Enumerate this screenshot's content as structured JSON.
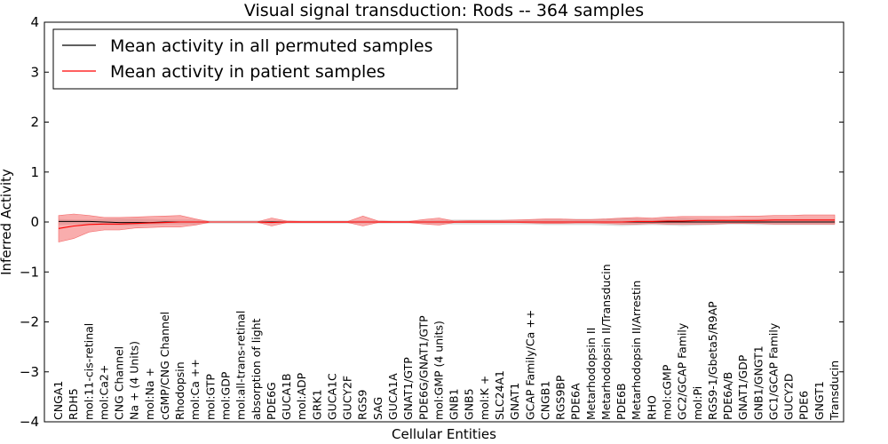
{
  "chart_data": {
    "type": "line",
    "title": "Visual signal transduction: Rods -- 364 samples",
    "xlabel": "Cellular Entities",
    "ylabel": "Inferred Activity",
    "ylim": [
      -4,
      4
    ],
    "yticks": [
      "−4",
      "−3",
      "−2",
      "−1",
      "0",
      "1",
      "2",
      "3",
      "4"
    ],
    "grid": false,
    "legend_position": "top-left",
    "categories": [
      "CNGA1",
      "RDH5",
      "mol:11-cis-retinal",
      "mol:Ca2+",
      "CNG Channel",
      "Na + (4 Units)",
      "mol:Na +",
      "cGMP/CNG Channel",
      "Rhodopsin",
      "mol:Ca ++",
      "mol:GTP",
      "mol:GDP",
      "mol:all-trans-retinal",
      "absorption of light",
      "PDE6G",
      "GUCA1B",
      "mol:ADP",
      "GRK1",
      "GUCA1C",
      "GUCY2F",
      "RGS9",
      "SAG",
      "GUCA1A",
      "GNAT1/GTP",
      "PDE6G/GNAT1/GTP",
      "mol:GMP (4 units)",
      "GNB1",
      "GNB5",
      "mol:K +",
      "SLC24A1",
      "GNAT1",
      "GCAP Family/Ca ++",
      "CNGB1",
      "RGS9BP",
      "PDE6A",
      "Metarhodopsin II",
      "Metarhodopsin II/Transducin",
      "PDE6B",
      "Metarhodopsin II/Arrestin",
      "RHO",
      "mol:cGMP",
      "GC2/GCAP Family",
      "mol:Pi",
      "RGS9-1/Gbeta5/R9AP",
      "PDE6A/B",
      "GNAT1/GDP",
      "GNB1/GNGT1",
      "GC1/GCAP Family",
      "GUCY2D",
      "PDE6",
      "GNGT1",
      "Transducin"
    ],
    "series": [
      {
        "name": "Mean activity in all permuted samples",
        "color": "#000000",
        "values": [
          0.01,
          0.01,
          0.01,
          0.0,
          -0.01,
          -0.01,
          -0.01,
          0.0,
          0.0,
          0.0,
          0,
          0,
          0,
          0,
          0,
          0,
          0,
          0,
          0,
          0,
          0,
          0,
          0,
          0,
          0,
          0,
          0,
          0,
          0,
          0,
          0,
          0,
          0,
          0,
          0,
          0,
          0,
          0,
          0,
          0,
          0,
          0,
          0,
          0,
          0,
          0,
          0,
          0,
          0,
          0,
          0,
          0
        ],
        "band_lower": [
          -0.06,
          -0.05,
          -0.05,
          -0.06,
          -0.07,
          -0.07,
          -0.06,
          -0.05,
          -0.05,
          -0.05,
          -0.03,
          -0.03,
          -0.03,
          -0.03,
          -0.03,
          -0.03,
          -0.03,
          -0.03,
          -0.03,
          -0.03,
          -0.03,
          -0.03,
          -0.03,
          -0.03,
          -0.03,
          -0.04,
          -0.05,
          -0.05,
          -0.05,
          -0.05,
          -0.05,
          -0.05,
          -0.06,
          -0.06,
          -0.06,
          -0.06,
          -0.07,
          -0.08,
          -0.07,
          -0.06,
          -0.07,
          -0.08,
          -0.07,
          -0.06,
          -0.05,
          -0.05,
          -0.06,
          -0.06,
          -0.06,
          -0.06,
          -0.06,
          -0.06
        ],
        "band_upper": [
          0.06,
          0.05,
          0.05,
          0.06,
          0.07,
          0.07,
          0.06,
          0.05,
          0.05,
          0.05,
          0.03,
          0.03,
          0.03,
          0.03,
          0.03,
          0.03,
          0.03,
          0.03,
          0.03,
          0.03,
          0.03,
          0.03,
          0.03,
          0.03,
          0.03,
          0.04,
          0.05,
          0.05,
          0.05,
          0.05,
          0.05,
          0.05,
          0.06,
          0.06,
          0.06,
          0.06,
          0.07,
          0.08,
          0.07,
          0.06,
          0.07,
          0.08,
          0.07,
          0.06,
          0.05,
          0.05,
          0.06,
          0.06,
          0.06,
          0.06,
          0.06,
          0.06
        ]
      },
      {
        "name": "Mean activity in patient samples",
        "color": "#ff0000",
        "band_color": "#f46a6a",
        "values": [
          -0.13,
          -0.08,
          -0.05,
          -0.04,
          -0.04,
          -0.03,
          -0.02,
          -0.01,
          0.0,
          0.0,
          0,
          0,
          0,
          0,
          -0.01,
          0,
          0,
          0,
          0,
          0,
          0,
          0,
          0,
          0,
          0,
          0,
          0,
          0,
          0,
          0,
          0,
          0,
          0,
          0,
          0,
          0,
          0,
          0,
          0.01,
          0.01,
          0.02,
          0.02,
          0.03,
          0.03,
          0.03,
          0.03,
          0.03,
          0.04,
          0.04,
          0.04,
          0.04,
          0.04
        ],
        "band_lower": [
          -0.4,
          -0.33,
          -0.2,
          -0.16,
          -0.16,
          -0.12,
          -0.11,
          -0.1,
          -0.1,
          -0.06,
          0,
          0,
          0,
          0,
          -0.08,
          -0.01,
          -0.01,
          -0.01,
          -0.01,
          -0.01,
          -0.08,
          -0.01,
          -0.01,
          -0.01,
          -0.04,
          -0.06,
          -0.01,
          -0.01,
          -0.01,
          -0.01,
          -0.01,
          -0.02,
          -0.03,
          -0.03,
          -0.02,
          -0.02,
          -0.03,
          -0.04,
          -0.04,
          -0.03,
          -0.04,
          -0.04,
          -0.04,
          -0.04,
          -0.03,
          -0.03,
          -0.03,
          -0.04,
          -0.04,
          -0.04,
          -0.04,
          -0.04
        ],
        "band_upper": [
          0.13,
          0.16,
          0.13,
          0.09,
          0.09,
          0.1,
          0.11,
          0.12,
          0.13,
          0.06,
          0,
          0,
          0,
          0,
          0.08,
          0.02,
          0.01,
          0.01,
          0.01,
          0.01,
          0.12,
          0.02,
          0.01,
          0.01,
          0.05,
          0.08,
          0.02,
          0.03,
          0.03,
          0.03,
          0.04,
          0.05,
          0.06,
          0.06,
          0.05,
          0.05,
          0.06,
          0.08,
          0.09,
          0.08,
          0.1,
          0.11,
          0.11,
          0.11,
          0.11,
          0.12,
          0.12,
          0.13,
          0.13,
          0.14,
          0.14,
          0.14
        ]
      }
    ]
  }
}
